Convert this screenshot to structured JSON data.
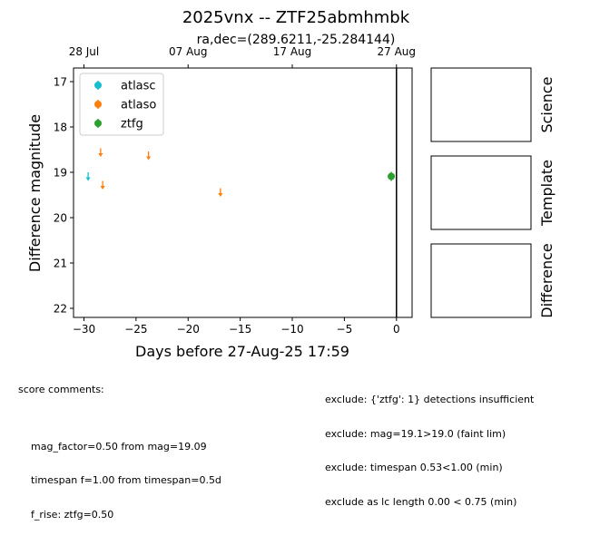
{
  "chart_data": {
    "type": "scatter",
    "title": "2025vnx -- ZTF25abmhmbk",
    "subtitle": "ra,dec=(289.6211,-25.284144)",
    "xlabel": "Days before 27-Aug-25 17:59",
    "ylabel": "Difference magnitude",
    "xlim": [
      -31,
      1.5
    ],
    "ylim": [
      22.2,
      16.7
    ],
    "y_inverted": true,
    "x_ticks": [
      -30,
      -25,
      -20,
      -15,
      -10,
      -5,
      0
    ],
    "x_tick_labels": [
      "−30",
      "−25",
      "−20",
      "−15",
      "−10",
      "−5",
      "0"
    ],
    "y_ticks": [
      17,
      18,
      19,
      20,
      21,
      22
    ],
    "y_tick_labels": [
      "17",
      "18",
      "19",
      "20",
      "21",
      "22"
    ],
    "top_axis_ticks": [
      -30,
      -20,
      -10,
      0
    ],
    "top_axis_labels": [
      "28 Jul",
      "07 Aug",
      "17 Aug",
      "27 Aug"
    ],
    "vline_x": 0,
    "grid": false,
    "legend_position": "top-left",
    "series": [
      {
        "name": "atlasc",
        "color": "#17becf",
        "marker": "upper-limit",
        "points": [
          {
            "x": -29.6,
            "y": 19.08
          }
        ]
      },
      {
        "name": "atlaso",
        "color": "#ff7f0e",
        "marker": "upper-limit",
        "points": [
          {
            "x": -28.4,
            "y": 18.55
          },
          {
            "x": -28.2,
            "y": 19.27
          },
          {
            "x": -23.8,
            "y": 18.62
          },
          {
            "x": -16.9,
            "y": 19.43
          }
        ]
      },
      {
        "name": "ztfg",
        "color": "#2ca02c",
        "marker": "point",
        "points": [
          {
            "x": -0.5,
            "y": 19.09,
            "yerr": 0.1
          }
        ]
      }
    ]
  },
  "panels": [
    {
      "label": "Science"
    },
    {
      "label": "Template"
    },
    {
      "label": "Difference"
    }
  ],
  "score_comments": {
    "heading": "score comments:",
    "lines": [
      "mag_factor=0.50 from mag=19.09",
      "timespan f=1.00 from timespan=0.5d",
      "f_rise: ztfg=0.50"
    ]
  },
  "exclude_comments": {
    "lines": [
      "exclude: {'ztfg': 1} detections insufficient",
      "exclude: mag=19.1>19.0 (faint lim)",
      "exclude: timespan 0.53<1.00 (min)",
      "exclude as lc length 0.00 < 0.75 (min)"
    ]
  }
}
